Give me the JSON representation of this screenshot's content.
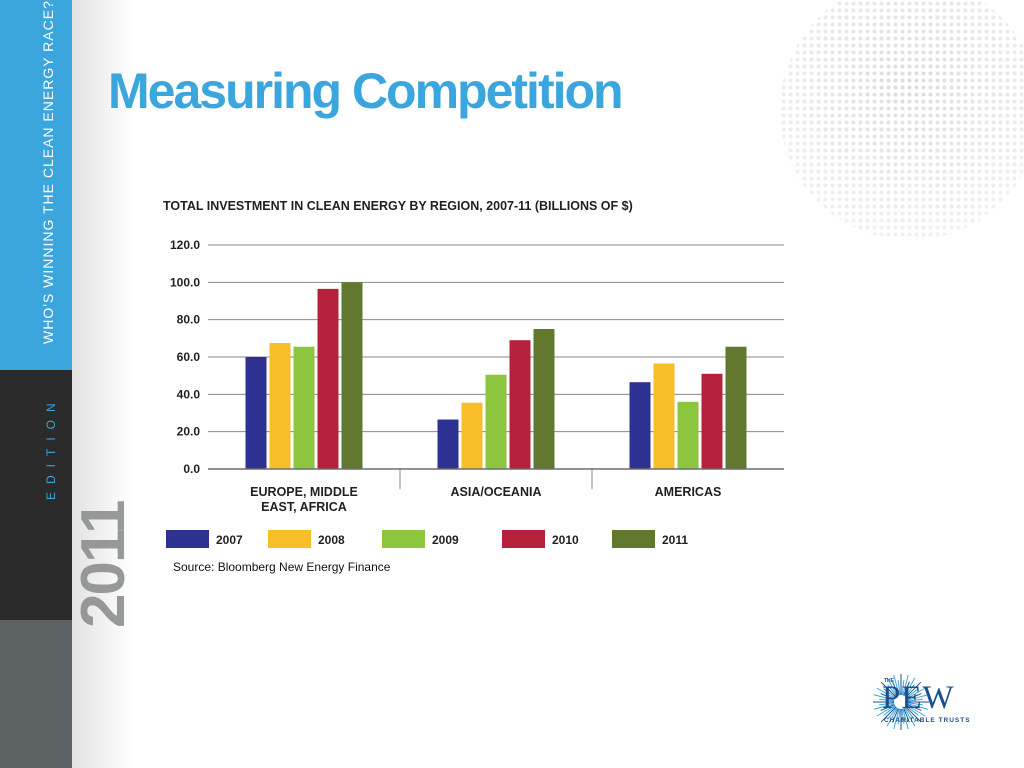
{
  "slide": {
    "title": "Measuring Competition",
    "side_tagline": "WHO'S WINNING THE CLEAN ENERGY RACE?",
    "side_edition": "EDITION",
    "side_year": "2011",
    "source": "Source: Bloomberg New Energy Finance",
    "logo": {
      "the": "THE",
      "name": "PEW",
      "subtitle": "CHARITABLE TRUSTS"
    }
  },
  "chart_data": {
    "type": "bar",
    "title": "TOTAL INVESTMENT IN CLEAN ENERGY BY REGION, 2007-11 (BILLIONS OF $)",
    "categories": [
      "EUROPE, MIDDLE EAST, AFRICA",
      "ASIA/OCEANIA",
      "AMERICAS"
    ],
    "category_lines": [
      [
        "EUROPE, MIDDLE",
        "EAST, AFRICA"
      ],
      [
        "ASIA/OCEANIA"
      ],
      [
        "AMERICAS"
      ]
    ],
    "series": [
      {
        "name": "2007",
        "color": "#2e3192",
        "values": [
          60.0,
          26.5,
          46.5
        ]
      },
      {
        "name": "2008",
        "color": "#f7be28",
        "values": [
          67.5,
          35.5,
          56.5
        ]
      },
      {
        "name": "2009",
        "color": "#8cc63f",
        "values": [
          65.5,
          50.5,
          36.0
        ]
      },
      {
        "name": "2010",
        "color": "#b5203a",
        "values": [
          96.5,
          69.0,
          51.0
        ]
      },
      {
        "name": "2011",
        "color": "#63782f",
        "values": [
          100.0,
          75.0,
          65.5
        ]
      }
    ],
    "ylim": [
      0,
      120
    ],
    "yticks": [
      "0.0",
      "20.0",
      "40.0",
      "60.0",
      "80.0",
      "100.0",
      "120.0"
    ],
    "grid": true,
    "legend_position": "bottom"
  }
}
